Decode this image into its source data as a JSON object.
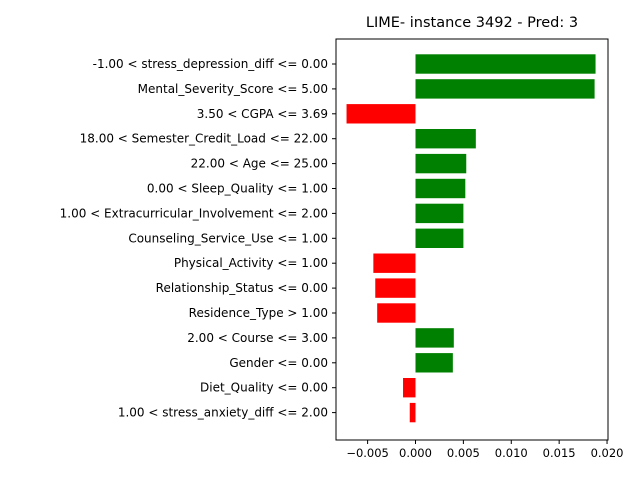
{
  "chart_data": {
    "type": "bar",
    "orientation": "horizontal",
    "title": "LIME- instance 3492 - Pred: 3",
    "xlabel": "",
    "ylabel": "",
    "xlim": [
      -0.0083,
      0.0201
    ],
    "grid": false,
    "legend": "none",
    "colors": {
      "positive": "#008000",
      "negative": "#ff0000"
    },
    "x_ticks": [
      -0.005,
      0.0,
      0.005,
      0.01,
      0.015,
      0.02
    ],
    "x_tick_labels": [
      "−0.005",
      "0.000",
      "0.005",
      "0.010",
      "0.015",
      "0.020"
    ],
    "categories": [
      "-1.00 < stress_depression_diff <= 0.00",
      "Mental_Severity_Score <= 5.00",
      "3.50 < CGPA <= 3.69",
      "18.00 < Semester_Credit_Load <= 22.00",
      "22.00 < Age <= 25.00",
      "0.00 < Sleep_Quality <= 1.00",
      "1.00 < Extracurricular_Involvement <= 2.00",
      "Counseling_Service_Use <= 1.00",
      "Physical_Activity <= 1.00",
      "Relationship_Status <= 0.00",
      "Residence_Type > 1.00",
      "2.00 < Course <= 3.00",
      "Gender <= 0.00",
      "Diet_Quality <= 0.00",
      "1.00 < stress_anxiety_diff <= 2.00"
    ],
    "values": [
      0.0188,
      0.0187,
      -0.0072,
      0.0063,
      0.0053,
      0.0052,
      0.005,
      0.005,
      -0.0044,
      -0.0042,
      -0.004,
      0.004,
      0.0039,
      -0.0013,
      -0.0006
    ]
  }
}
